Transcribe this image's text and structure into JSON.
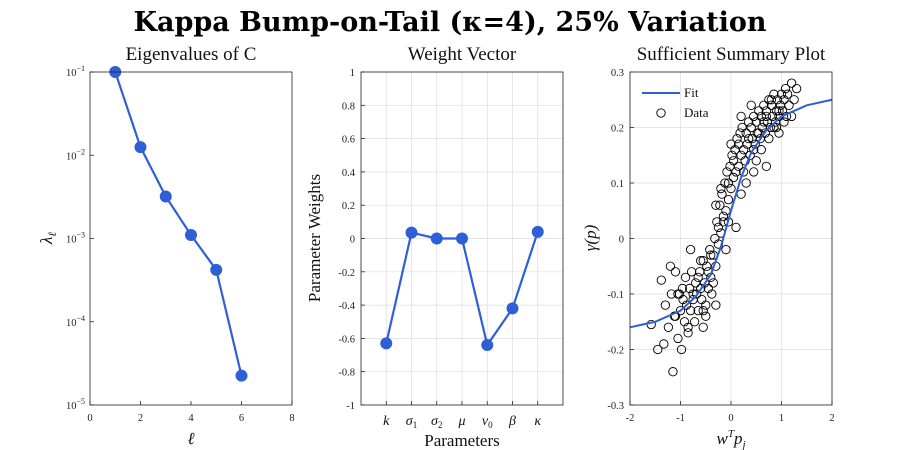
{
  "figure": {
    "title": "Kappa Bump-on-Tail (κ=4), 25% Variation",
    "accent_color": "#2f5fd6"
  },
  "chart_data": [
    {
      "type": "line",
      "title": "Eigenvalues of C",
      "xlabel": "ℓ",
      "ylabel": "λ",
      "ylabel_sub": "ℓ",
      "yscale": "log",
      "xlim": [
        0,
        8
      ],
      "ylim": [
        1e-05,
        0.1
      ],
      "xticks": [
        "0",
        "2",
        "4",
        "6",
        "8"
      ],
      "xtick_values": [
        0,
        2,
        4,
        6,
        8
      ],
      "yticks": [
        {
          "value": 0.1,
          "base": "10",
          "exp": "−1"
        },
        {
          "value": 0.01,
          "base": "10",
          "exp": "−2"
        },
        {
          "value": 0.001,
          "base": "10",
          "exp": "−3"
        },
        {
          "value": 0.0001,
          "base": "10",
          "exp": "−4"
        },
        {
          "value": 1e-05,
          "base": "10",
          "exp": "−5"
        }
      ],
      "grid": false,
      "x": [
        1,
        2,
        3,
        4,
        5,
        6
      ],
      "y": [
        0.1,
        0.0125,
        0.0032,
        0.0011,
        0.00042,
        2.25e-05
      ]
    },
    {
      "type": "line",
      "title": "Weight Vector",
      "xlabel": "Parameters",
      "ylabel": "Parameter Weights",
      "ylim": [
        -1,
        1
      ],
      "yticks": [
        "1",
        "0.8",
        "0.6",
        "0.4",
        "0.2",
        "0",
        "-0.2",
        "-0.4",
        "-0.6",
        "-0.8",
        "-1"
      ],
      "ytick_values": [
        1,
        0.8,
        0.6,
        0.4,
        0.2,
        0,
        -0.2,
        -0.4,
        -0.6,
        -0.8,
        -1
      ],
      "grid": true,
      "categories": [
        {
          "base": "k",
          "sub": ""
        },
        {
          "base": "σ",
          "sub": "1"
        },
        {
          "base": "σ",
          "sub": "2"
        },
        {
          "base": "μ",
          "sub": ""
        },
        {
          "base": "v",
          "sub": "0"
        },
        {
          "base": "β",
          "sub": ""
        },
        {
          "base": "κ",
          "sub": ""
        }
      ],
      "values": [
        -0.63,
        0.035,
        0.0,
        0.0,
        -0.64,
        -0.42,
        0.04
      ]
    },
    {
      "type": "scatter",
      "title": "Sufficient Summary Plot",
      "xlabel": "w",
      "xlabel_sup": "T",
      "xlabel_tail": "p",
      "xlabel_sub": "j",
      "ylabel": "γ(p)",
      "xlim": [
        -2,
        2
      ],
      "ylim": [
        -0.3,
        0.3
      ],
      "xticks": [
        "-2",
        "-1",
        "0",
        "1",
        "2"
      ],
      "xtick_values": [
        -2,
        -1,
        0,
        1,
        2
      ],
      "yticks": [
        "0.3",
        "0.2",
        "0.1",
        "0",
        "-0.1",
        "-0.2",
        "-0.3"
      ],
      "ytick_values": [
        0.3,
        0.2,
        0.1,
        0,
        -0.1,
        -0.2,
        -0.3
      ],
      "grid": true,
      "legend": {
        "position": "top-left",
        "fit_label": "Fit",
        "data_label": "Data"
      },
      "fit": {
        "x": [
          -2,
          -1.5,
          -1.0,
          -0.7,
          -0.4,
          -0.2,
          0.0,
          0.2,
          0.4,
          0.7,
          1.0,
          1.5,
          2.0
        ],
        "y": [
          -0.16,
          -0.15,
          -0.13,
          -0.105,
          -0.065,
          -0.015,
          0.05,
          0.11,
          0.155,
          0.195,
          0.22,
          0.24,
          0.25
        ]
      },
      "points": {
        "x": [
          -1.58,
          -1.45,
          -1.38,
          -1.33,
          -1.3,
          -1.24,
          -1.18,
          -1.15,
          -1.12,
          -1.1,
          -1.05,
          -1.02,
          -1.0,
          -0.98,
          -0.96,
          -0.92,
          -0.9,
          -0.88,
          -0.85,
          -0.82,
          -0.8,
          -0.78,
          -0.75,
          -0.72,
          -0.7,
          -0.68,
          -0.65,
          -0.62,
          -0.6,
          -0.58,
          -0.55,
          -0.52,
          -0.5,
          -0.48,
          -0.45,
          -0.42,
          -0.4,
          -0.38,
          -0.35,
          -0.32,
          -0.3,
          -0.28,
          -0.25,
          -0.22,
          -0.2,
          -0.18,
          -0.15,
          -0.12,
          -0.1,
          -0.08,
          -0.05,
          -0.02,
          0.0,
          0.02,
          0.05,
          0.08,
          0.1,
          0.12,
          0.15,
          0.18,
          0.2,
          0.22,
          0.25,
          0.28,
          0.3,
          0.32,
          0.35,
          0.38,
          0.4,
          0.42,
          0.45,
          0.48,
          0.5,
          0.52,
          0.55,
          0.58,
          0.6,
          0.62,
          0.65,
          0.68,
          0.7,
          0.72,
          0.75,
          0.78,
          0.8,
          0.82,
          0.85,
          0.88,
          0.9,
          0.92,
          0.95,
          0.98,
          1.0,
          1.02,
          1.05,
          1.08,
          1.1,
          1.12,
          1.15,
          1.2,
          1.25,
          1.3,
          -1.2,
          -1.1,
          -0.95,
          -0.85,
          -0.75,
          -0.65,
          -0.55,
          -0.45,
          -0.35,
          -0.25,
          -0.15,
          -0.05,
          0.05,
          0.15,
          0.25,
          0.35,
          0.45,
          0.55,
          0.65,
          0.75,
          0.85,
          0.95,
          1.05,
          -0.6,
          -0.5,
          -0.4,
          -0.3,
          -0.2,
          -0.1,
          0.0,
          0.1,
          0.2,
          0.3,
          0.4,
          0.5,
          0.6,
          0.7,
          0.8,
          0.9,
          -1.05,
          -0.8,
          -0.55,
          -0.3,
          -0.05,
          0.2,
          0.45,
          0.7,
          0.95,
          1.2
        ],
        "y": [
          -0.155,
          -0.2,
          -0.075,
          -0.19,
          -0.12,
          -0.16,
          -0.1,
          -0.24,
          -0.14,
          -0.06,
          -0.18,
          -0.1,
          -0.13,
          -0.2,
          -0.09,
          -0.15,
          -0.07,
          -0.12,
          -0.17,
          -0.09,
          -0.13,
          -0.06,
          -0.11,
          -0.15,
          -0.08,
          -0.1,
          -0.13,
          -0.06,
          -0.09,
          -0.11,
          -0.04,
          -0.08,
          -0.12,
          -0.05,
          -0.09,
          -0.02,
          -0.07,
          -0.1,
          -0.03,
          0.0,
          -0.05,
          0.03,
          -0.01,
          0.06,
          0.01,
          0.08,
          0.03,
          0.1,
          0.05,
          0.12,
          0.07,
          0.13,
          0.09,
          0.15,
          0.11,
          0.16,
          0.12,
          0.18,
          0.13,
          0.19,
          0.15,
          0.2,
          0.16,
          0.14,
          0.19,
          0.17,
          0.21,
          0.15,
          0.2,
          0.18,
          0.22,
          0.17,
          0.21,
          0.19,
          0.23,
          0.18,
          0.22,
          0.2,
          0.24,
          0.19,
          0.23,
          0.21,
          0.25,
          0.2,
          0.24,
          0.22,
          0.26,
          0.21,
          0.23,
          0.25,
          0.22,
          0.24,
          0.26,
          0.23,
          0.25,
          0.27,
          0.22,
          0.26,
          0.24,
          0.28,
          0.25,
          0.27,
          -0.05,
          -0.14,
          -0.11,
          -0.16,
          -0.1,
          -0.07,
          -0.13,
          -0.06,
          -0.08,
          0.02,
          0.04,
          0.1,
          0.14,
          0.17,
          0.12,
          0.18,
          0.16,
          0.19,
          0.21,
          0.18,
          0.2,
          0.23,
          0.21,
          -0.04,
          -0.14,
          -0.03,
          -0.12,
          0.09,
          -0.02,
          0.17,
          0.02,
          0.22,
          0.1,
          0.24,
          0.14,
          0.16,
          0.22,
          0.25,
          0.2,
          -0.1,
          -0.02,
          -0.16,
          0.06,
          0.03,
          0.08,
          0.12,
          0.13,
          0.19,
          0.22
        ]
      }
    }
  ]
}
